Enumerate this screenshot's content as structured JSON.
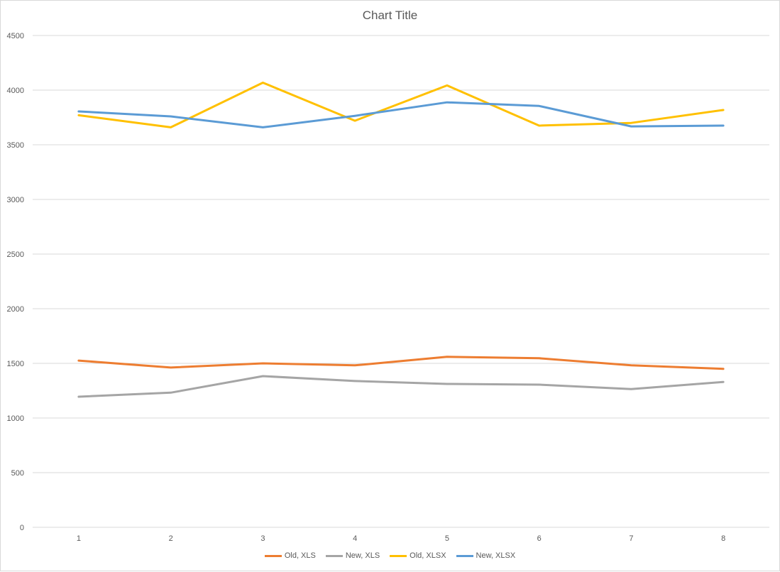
{
  "chart_data": {
    "type": "line",
    "title": "Chart Title",
    "xlabel": "",
    "ylabel": "",
    "x": [
      1,
      2,
      3,
      4,
      5,
      6,
      7,
      8
    ],
    "ylim": [
      0,
      4500
    ],
    "yticks": [
      0,
      500,
      1000,
      1500,
      2000,
      2500,
      3000,
      3500,
      4000,
      4500
    ],
    "grid": true,
    "legend_position": "bottom",
    "series": [
      {
        "name": "Old, XLS",
        "color": "#ED7D31",
        "values": [
          1525,
          1462,
          1500,
          1482,
          1560,
          1547,
          1482,
          1450
        ]
      },
      {
        "name": "New, XLS",
        "color": "#A5A5A5",
        "values": [
          1195,
          1232,
          1383,
          1338,
          1312,
          1305,
          1265,
          1330
        ]
      },
      {
        "name": "Old, XLSX",
        "color": "#FFC000",
        "values": [
          3770,
          3660,
          4068,
          3720,
          4043,
          3675,
          3700,
          3818
        ]
      },
      {
        "name": "New, XLSX",
        "color": "#5B9BD5",
        "values": [
          3805,
          3760,
          3660,
          3765,
          3888,
          3855,
          3668,
          3675
        ]
      }
    ]
  }
}
